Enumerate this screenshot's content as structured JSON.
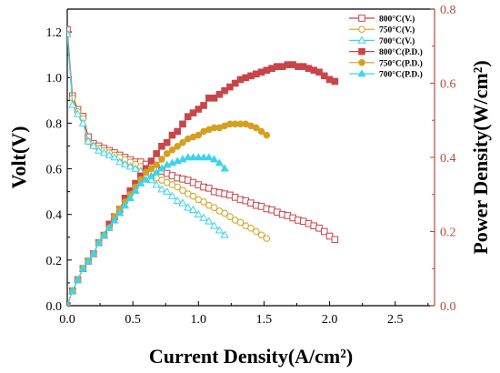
{
  "chart_data": {
    "type": "line",
    "xlabel": "Current Density(A/cm²)",
    "ylabel_left": "Volt(V)",
    "ylabel_right": "Power Density(W/cm²)",
    "xlim": [
      0,
      2.8
    ],
    "ylim_left": [
      0,
      1.3
    ],
    "ylim_right": [
      0,
      0.8
    ],
    "x_ticks": [
      "0.0",
      "0.5",
      "1.0",
      "1.5",
      "2.0",
      "2.5"
    ],
    "y_left_ticks": [
      "0.0",
      "0.2",
      "0.4",
      "0.6",
      "0.8",
      "1.0",
      "1.2"
    ],
    "y_right_ticks": [
      "0.0",
      "0.2",
      "0.4",
      "0.6",
      "0.8"
    ],
    "grid": false,
    "legend_position": "top-right",
    "colors": {
      "left_axis": "#000000",
      "right_axis": "#b84a3a",
      "c800": "#c8454a",
      "c750": "#d4a020",
      "c700": "#3ed4ec"
    },
    "series": [
      {
        "name": "800°C(V.)",
        "axis": "left",
        "marker": "square-open",
        "color_key": "c800",
        "x": [
          0.0,
          0.04,
          0.08,
          0.12,
          0.16,
          0.2,
          0.24,
          0.28,
          0.32,
          0.36,
          0.4,
          0.44,
          0.48,
          0.52,
          0.56,
          0.6,
          0.64,
          0.68,
          0.72,
          0.76,
          0.8,
          0.84,
          0.88,
          0.92,
          0.96,
          1.0,
          1.04,
          1.08,
          1.12,
          1.16,
          1.2,
          1.24,
          1.28,
          1.32,
          1.36,
          1.4,
          1.44,
          1.48,
          1.52,
          1.56,
          1.6,
          1.64,
          1.68,
          1.72,
          1.76,
          1.8,
          1.84,
          1.88,
          1.92,
          1.96,
          2.0,
          2.04
        ],
        "y": [
          1.21,
          0.92,
          0.86,
          0.83,
          0.74,
          0.71,
          0.7,
          0.69,
          0.68,
          0.67,
          0.66,
          0.65,
          0.64,
          0.63,
          0.63,
          0.62,
          0.61,
          0.6,
          0.59,
          0.58,
          0.57,
          0.56,
          0.555,
          0.55,
          0.54,
          0.53,
          0.52,
          0.515,
          0.5,
          0.495,
          0.49,
          0.485,
          0.475,
          0.465,
          0.46,
          0.45,
          0.44,
          0.435,
          0.425,
          0.42,
          0.41,
          0.4,
          0.395,
          0.385,
          0.375,
          0.37,
          0.36,
          0.35,
          0.34,
          0.325,
          0.305,
          0.29
        ]
      },
      {
        "name": "750°C(V.)",
        "axis": "left",
        "marker": "circle-open",
        "color_key": "c750",
        "x": [
          0.0,
          0.04,
          0.08,
          0.12,
          0.16,
          0.2,
          0.24,
          0.28,
          0.32,
          0.36,
          0.4,
          0.44,
          0.48,
          0.52,
          0.56,
          0.6,
          0.64,
          0.68,
          0.72,
          0.76,
          0.8,
          0.84,
          0.88,
          0.92,
          0.96,
          1.0,
          1.04,
          1.08,
          1.12,
          1.16,
          1.2,
          1.24,
          1.28,
          1.32,
          1.36,
          1.4,
          1.44,
          1.48,
          1.52
        ],
        "y": [
          1.19,
          0.91,
          0.85,
          0.82,
          0.72,
          0.7,
          0.69,
          0.68,
          0.67,
          0.66,
          0.65,
          0.64,
          0.63,
          0.62,
          0.61,
          0.6,
          0.58,
          0.56,
          0.55,
          0.54,
          0.53,
          0.52,
          0.505,
          0.49,
          0.48,
          0.465,
          0.455,
          0.44,
          0.43,
          0.415,
          0.405,
          0.39,
          0.375,
          0.365,
          0.35,
          0.34,
          0.325,
          0.31,
          0.295
        ]
      },
      {
        "name": "700°C(V.)",
        "axis": "left",
        "marker": "triangle-open",
        "color_key": "c700",
        "x": [
          0.0,
          0.04,
          0.08,
          0.12,
          0.16,
          0.2,
          0.24,
          0.28,
          0.32,
          0.36,
          0.4,
          0.44,
          0.48,
          0.52,
          0.56,
          0.6,
          0.64,
          0.68,
          0.72,
          0.76,
          0.8,
          0.84,
          0.88,
          0.92,
          0.96,
          1.0,
          1.04,
          1.08,
          1.12,
          1.16,
          1.2
        ],
        "y": [
          1.19,
          0.88,
          0.84,
          0.8,
          0.72,
          0.7,
          0.68,
          0.67,
          0.66,
          0.65,
          0.63,
          0.62,
          0.61,
          0.6,
          0.59,
          0.57,
          0.55,
          0.53,
          0.51,
          0.5,
          0.48,
          0.46,
          0.45,
          0.43,
          0.42,
          0.4,
          0.385,
          0.37,
          0.35,
          0.33,
          0.31
        ]
      },
      {
        "name": "800°C(P.D.)",
        "axis": "right",
        "marker": "square-filled",
        "color_key": "c800",
        "x": [
          0.0,
          0.04,
          0.08,
          0.12,
          0.16,
          0.2,
          0.24,
          0.28,
          0.32,
          0.36,
          0.4,
          0.44,
          0.48,
          0.52,
          0.56,
          0.6,
          0.64,
          0.68,
          0.72,
          0.76,
          0.8,
          0.84,
          0.88,
          0.92,
          0.96,
          1.0,
          1.04,
          1.08,
          1.12,
          1.16,
          1.2,
          1.24,
          1.28,
          1.32,
          1.36,
          1.4,
          1.44,
          1.48,
          1.52,
          1.56,
          1.6,
          1.64,
          1.68,
          1.72,
          1.76,
          1.8,
          1.84,
          1.88,
          1.92,
          1.96,
          2.0,
          2.04
        ],
        "y": [
          0.0,
          0.04,
          0.07,
          0.1,
          0.12,
          0.14,
          0.17,
          0.19,
          0.22,
          0.24,
          0.26,
          0.29,
          0.31,
          0.33,
          0.35,
          0.37,
          0.39,
          0.41,
          0.43,
          0.44,
          0.46,
          0.47,
          0.49,
          0.51,
          0.52,
          0.53,
          0.54,
          0.56,
          0.56,
          0.57,
          0.58,
          0.59,
          0.6,
          0.61,
          0.615,
          0.62,
          0.625,
          0.63,
          0.635,
          0.64,
          0.645,
          0.645,
          0.65,
          0.65,
          0.645,
          0.645,
          0.64,
          0.635,
          0.63,
          0.62,
          0.61,
          0.605
        ]
      },
      {
        "name": "750°C(P.D.)",
        "axis": "right",
        "marker": "circle-filled",
        "color_key": "c750",
        "x": [
          0.0,
          0.04,
          0.08,
          0.12,
          0.16,
          0.2,
          0.24,
          0.28,
          0.32,
          0.36,
          0.4,
          0.44,
          0.48,
          0.52,
          0.56,
          0.6,
          0.64,
          0.68,
          0.72,
          0.76,
          0.8,
          0.84,
          0.88,
          0.92,
          0.96,
          1.0,
          1.04,
          1.08,
          1.12,
          1.16,
          1.2,
          1.24,
          1.28,
          1.32,
          1.36,
          1.4,
          1.44,
          1.48,
          1.52
        ],
        "y": [
          0.0,
          0.04,
          0.07,
          0.1,
          0.12,
          0.14,
          0.17,
          0.19,
          0.21,
          0.24,
          0.26,
          0.28,
          0.3,
          0.32,
          0.34,
          0.36,
          0.37,
          0.38,
          0.395,
          0.41,
          0.42,
          0.43,
          0.44,
          0.45,
          0.455,
          0.46,
          0.47,
          0.475,
          0.48,
          0.48,
          0.485,
          0.49,
          0.49,
          0.49,
          0.49,
          0.485,
          0.48,
          0.47,
          0.46
        ]
      },
      {
        "name": "700°C(P.D.)",
        "axis": "right",
        "marker": "triangle-filled",
        "color_key": "c700",
        "x": [
          0.0,
          0.04,
          0.08,
          0.12,
          0.16,
          0.2,
          0.24,
          0.28,
          0.32,
          0.36,
          0.4,
          0.44,
          0.48,
          0.52,
          0.56,
          0.6,
          0.64,
          0.68,
          0.72,
          0.76,
          0.8,
          0.84,
          0.88,
          0.92,
          0.96,
          1.0,
          1.04,
          1.08,
          1.12,
          1.16,
          1.2
        ],
        "y": [
          0.0,
          0.04,
          0.07,
          0.1,
          0.12,
          0.14,
          0.17,
          0.19,
          0.21,
          0.23,
          0.25,
          0.27,
          0.29,
          0.31,
          0.33,
          0.34,
          0.35,
          0.36,
          0.37,
          0.38,
          0.385,
          0.39,
          0.395,
          0.4,
          0.4,
          0.4,
          0.4,
          0.4,
          0.395,
          0.385,
          0.37
        ]
      }
    ]
  }
}
